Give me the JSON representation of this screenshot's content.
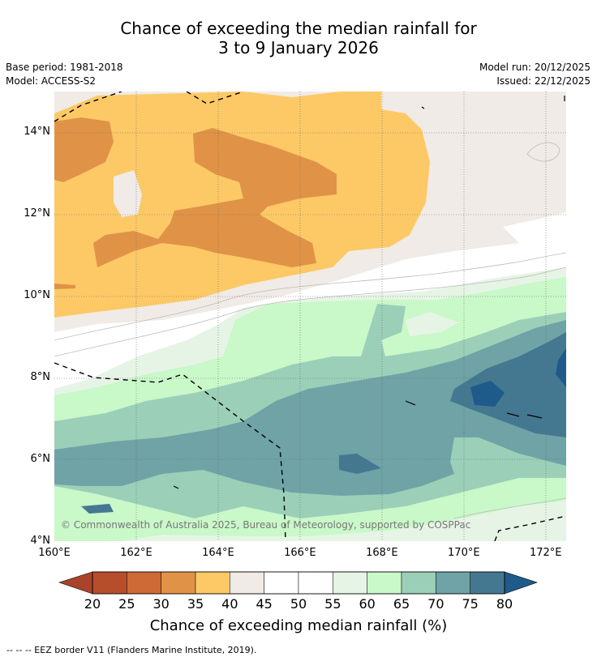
{
  "title": {
    "line1": "Chance of exceeding the median rainfall for",
    "line2": "3 to 9 January 2026"
  },
  "meta": {
    "base_period": "Base period: 1981-2018",
    "model": "Model: ACCESS-S2",
    "model_run": "Model run: 20/12/2025",
    "issued": "Issued: 22/12/2025"
  },
  "map": {
    "lon_range": [
      160,
      172.5
    ],
    "lat_range": [
      4,
      15
    ],
    "x_ticks": [
      "160°E",
      "162°E",
      "164°E",
      "166°E",
      "168°E",
      "170°E",
      "172°E"
    ],
    "y_ticks": [
      "14°N",
      "12°N",
      "10°N",
      "8°N",
      "6°N",
      "4°N"
    ],
    "copyright": "© Commonwealth of Australia 2025, Bureau of Meteorology, supported by COSPPac"
  },
  "colorbar": {
    "labels": [
      "20",
      "25",
      "30",
      "35",
      "40",
      "45",
      "50",
      "55",
      "60",
      "65",
      "70",
      "75",
      "80"
    ],
    "colors": [
      "#a9442a",
      "#b64e2c",
      "#cd6a35",
      "#e09346",
      "#fcc966",
      "#f0ebe6",
      "#ffffff",
      "#ffffff",
      "#e6f4e6",
      "#c9f8c9",
      "#9bcfb8",
      "#6fa3a6",
      "#447891",
      "#1e5a8a"
    ],
    "title": "Chance of exceeding median rainfall (%)"
  },
  "footnote": "--  --  -- EEZ border V11 (Flanders Marine Institute, 2019)."
}
